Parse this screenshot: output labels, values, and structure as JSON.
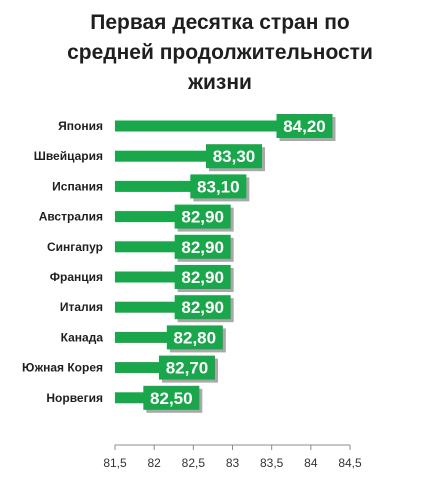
{
  "chart_data": {
    "type": "bar",
    "orientation": "horizontal",
    "title": "Первая десятка стран по\nсредней продолжительности\nжизни",
    "categories": [
      "Япония",
      "Швейцария",
      "Испания",
      "Австралия",
      "Сингапур",
      "Франция",
      "Италия",
      "Канада",
      "Южная Корея",
      "Норвегия"
    ],
    "values": [
      84.2,
      83.3,
      83.1,
      82.9,
      82.9,
      82.9,
      82.9,
      82.8,
      82.7,
      82.5
    ],
    "data_labels": [
      "84,20",
      "83,30",
      "83,10",
      "82,90",
      "82,90",
      "82,90",
      "82,90",
      "82,80",
      "82,70",
      "82,50"
    ],
    "xlim": [
      81.5,
      84.5
    ],
    "x_ticks": [
      81.5,
      82,
      82.5,
      83,
      83.5,
      84,
      84.5
    ],
    "x_tick_labels": [
      "81,5",
      "82",
      "82,5",
      "83",
      "83,5",
      "84",
      "84,5"
    ],
    "grid": false,
    "legend": "none",
    "colors": {
      "bar": "#1aa64a",
      "label_box": "#1aa64a",
      "label_shadow": "#a9a9a9",
      "axis": "#8c8c8c"
    }
  }
}
